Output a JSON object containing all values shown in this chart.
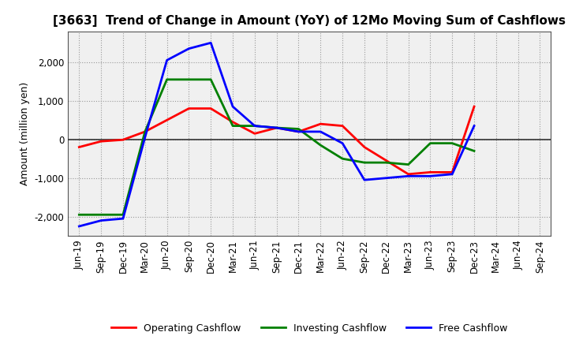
{
  "title": "[3663]  Trend of Change in Amount (YoY) of 12Mo Moving Sum of Cashflows",
  "ylabel": "Amount (million yen)",
  "x_labels": [
    "Jun-19",
    "Sep-19",
    "Dec-19",
    "Mar-20",
    "Jun-20",
    "Sep-20",
    "Dec-20",
    "Mar-21",
    "Jun-21",
    "Sep-21",
    "Dec-21",
    "Mar-22",
    "Jun-22",
    "Sep-22",
    "Dec-22",
    "Mar-23",
    "Jun-23",
    "Sep-23",
    "Dec-23",
    "Mar-24",
    "Jun-24",
    "Sep-24"
  ],
  "operating": [
    -200,
    -50,
    -10,
    200,
    500,
    800,
    800,
    450,
    150,
    300,
    200,
    400,
    350,
    -200,
    -550,
    -900,
    -850,
    -850,
    850,
    null,
    null,
    null
  ],
  "investing": [
    -1950,
    -1950,
    -1950,
    200,
    1550,
    1550,
    1550,
    350,
    350,
    300,
    270,
    -150,
    -500,
    -600,
    -600,
    -650,
    -100,
    -100,
    -300,
    null,
    null,
    null
  ],
  "free": [
    -2250,
    -2100,
    -2050,
    50,
    2050,
    2350,
    2500,
    850,
    350,
    300,
    200,
    200,
    -100,
    -1050,
    -1000,
    -950,
    -950,
    -900,
    350,
    null,
    null,
    null
  ],
  "operating_color": "#ff0000",
  "investing_color": "#008000",
  "free_color": "#0000ff",
  "ylim": [
    -2500,
    2800
  ],
  "yticks": [
    -2000,
    -1000,
    0,
    1000,
    2000
  ],
  "background_color": "#ffffff",
  "plot_bg_color": "#f0f0f0",
  "grid_color": "#999999",
  "line_width": 2.0,
  "title_fontsize": 11,
  "axis_fontsize": 9,
  "tick_fontsize": 8.5,
  "legend_fontsize": 9
}
